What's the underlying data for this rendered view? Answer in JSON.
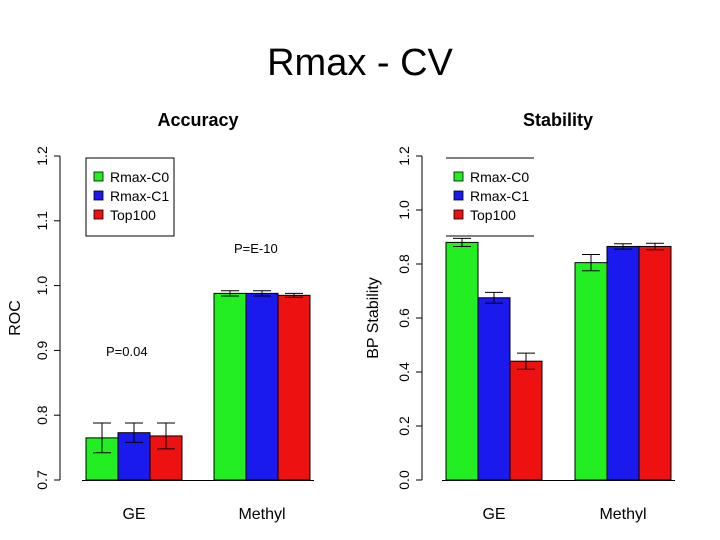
{
  "slide": {
    "title": "Rmax - CV"
  },
  "chart_data": [
    {
      "type": "bar",
      "title": "Accuracy",
      "ylabel": "ROC",
      "xlabel": "",
      "categories": [
        "GE",
        "Methyl"
      ],
      "ylim": [
        0.7,
        1.2
      ],
      "yticks": [
        "0.7",
        "0.8",
        "0.9",
        "1.0",
        "1.1",
        "1.2"
      ],
      "series": [
        {
          "name": "Rmax-C0",
          "color": "#22ee22",
          "values": [
            0.765,
            0.988
          ],
          "err": [
            0.023,
            0.004
          ]
        },
        {
          "name": "Rmax-C1",
          "color": "#1a1aee",
          "values": [
            0.773,
            0.988
          ],
          "err": [
            0.015,
            0.004
          ]
        },
        {
          "name": "Top100",
          "color": "#ee1111",
          "values": [
            0.768,
            0.985
          ],
          "err": [
            0.02,
            0.003
          ]
        }
      ],
      "annotations": [
        "P=0.04",
        "P=E-10"
      ],
      "legend": "top-left"
    },
    {
      "type": "bar",
      "title": "Stability",
      "ylabel": "BP Stability",
      "xlabel": "",
      "categories": [
        "GE",
        "Methyl"
      ],
      "ylim": [
        0.0,
        1.2
      ],
      "yticks": [
        "0.0",
        "0.2",
        "0.4",
        "0.6",
        "0.8",
        "1.0",
        "1.2"
      ],
      "series": [
        {
          "name": "Rmax-C0",
          "color": "#22ee22",
          "values": [
            0.88,
            0.805
          ],
          "err": [
            0.015,
            0.03
          ]
        },
        {
          "name": "Rmax-C1",
          "color": "#1a1aee",
          "values": [
            0.675,
            0.865
          ],
          "err": [
            0.02,
            0.01
          ]
        },
        {
          "name": "Top100",
          "color": "#ee1111",
          "values": [
            0.44,
            0.865
          ],
          "err": [
            0.03,
            0.012
          ]
        }
      ],
      "legend": "top-left"
    }
  ]
}
